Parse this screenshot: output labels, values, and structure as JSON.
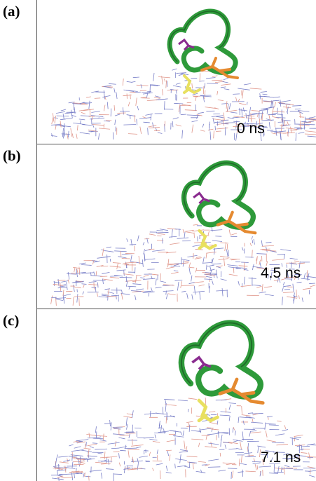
{
  "panels": [
    {
      "label": "(a)",
      "time": "0 ns"
    },
    {
      "label": "(b)",
      "time": "4.5 ns"
    },
    {
      "label": "(c)",
      "time": "7.1 ns"
    }
  ]
}
